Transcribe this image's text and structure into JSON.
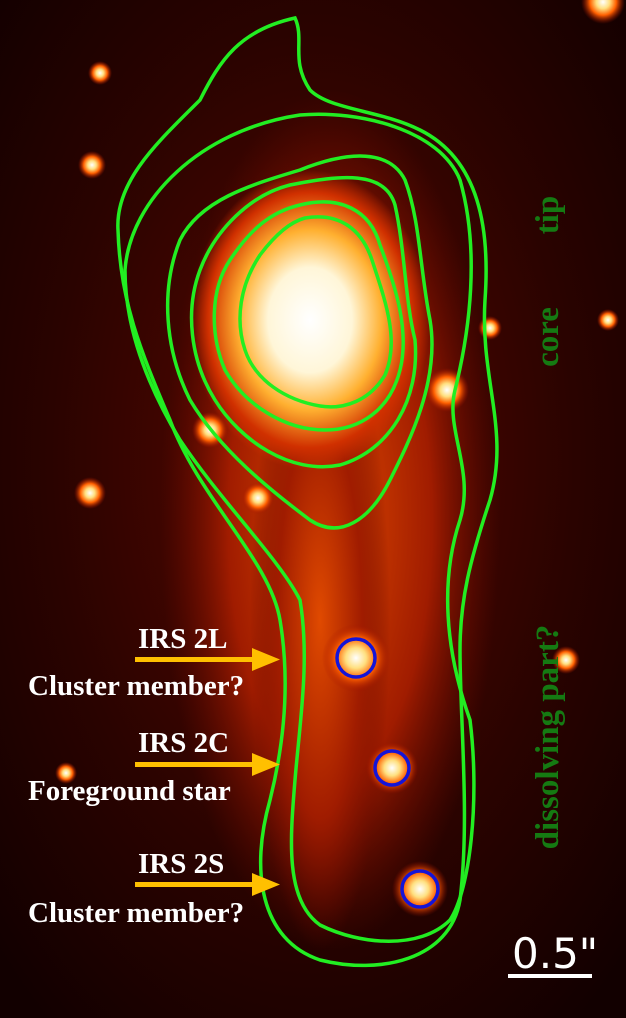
{
  "regions": [
    {
      "label": "tip"
    },
    {
      "label": "core"
    },
    {
      "label": "dissolving part?"
    }
  ],
  "sources": [
    {
      "name": "IRS 2L",
      "note": "Cluster member?"
    },
    {
      "name": "IRS 2C",
      "note": "Foreground star"
    },
    {
      "name": "IRS 2S",
      "note": "Cluster member?"
    }
  ],
  "scale_bar": {
    "label": "0.5\""
  }
}
